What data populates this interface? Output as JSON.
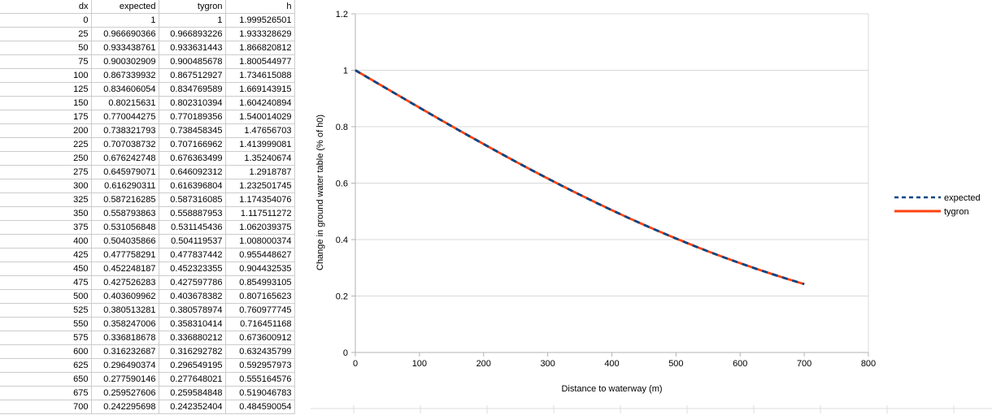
{
  "table": {
    "columns": [
      "dx",
      "expected",
      "tygron",
      "h"
    ],
    "rows": [
      [
        "0",
        "1",
        "1",
        "1.999526501"
      ],
      [
        "25",
        "0.966690366",
        "0.966893226",
        "1.933328629"
      ],
      [
        "50",
        "0.933438761",
        "0.933631443",
        "1.866820812"
      ],
      [
        "75",
        "0.900302909",
        "0.900485678",
        "1.800544977"
      ],
      [
        "100",
        "0.867339932",
        "0.867512927",
        "1.734615088"
      ],
      [
        "125",
        "0.834606054",
        "0.834769589",
        "1.669143915"
      ],
      [
        "150",
        "0.80215631",
        "0.802310394",
        "1.604240894"
      ],
      [
        "175",
        "0.770044275",
        "0.770189356",
        "1.540014029"
      ],
      [
        "200",
        "0.738321793",
        "0.738458345",
        "1.47656703"
      ],
      [
        "225",
        "0.707038732",
        "0.707166962",
        "1.413999081"
      ],
      [
        "250",
        "0.676242748",
        "0.676363499",
        "1.35240674"
      ],
      [
        "275",
        "0.645979071",
        "0.646092312",
        "1.2918787"
      ],
      [
        "300",
        "0.616290311",
        "0.616396804",
        "1.232501745"
      ],
      [
        "325",
        "0.587216285",
        "0.587316085",
        "1.174354076"
      ],
      [
        "350",
        "0.558793863",
        "0.558887953",
        "1.117511272"
      ],
      [
        "375",
        "0.531056848",
        "0.531145436",
        "1.062039375"
      ],
      [
        "400",
        "0.504035866",
        "0.504119537",
        "1.008000374"
      ],
      [
        "425",
        "0.477758291",
        "0.477837442",
        "0.955448627"
      ],
      [
        "450",
        "0.452248187",
        "0.452323355",
        "0.904432535"
      ],
      [
        "475",
        "0.427526283",
        "0.427597786",
        "0.854993105"
      ],
      [
        "500",
        "0.403609962",
        "0.403678382",
        "0.807165623"
      ],
      [
        "525",
        "0.380513281",
        "0.380578974",
        "0.760977745"
      ],
      [
        "550",
        "0.358247006",
        "0.358310414",
        "0.716451168"
      ],
      [
        "575",
        "0.336818678",
        "0.336880212",
        "0.673600912"
      ],
      [
        "600",
        "0.316232687",
        "0.316292782",
        "0.632435799"
      ],
      [
        "625",
        "0.296490374",
        "0.296549195",
        "0.592957973"
      ],
      [
        "650",
        "0.277590146",
        "0.277648021",
        "0.555164576"
      ],
      [
        "675",
        "0.259527606",
        "0.259584848",
        "0.519046783"
      ],
      [
        "700",
        "0.242295698",
        "0.242352404",
        "0.484590054"
      ]
    ]
  },
  "chart_data": {
    "type": "line",
    "x": [
      0,
      25,
      50,
      75,
      100,
      125,
      150,
      175,
      200,
      225,
      250,
      275,
      300,
      325,
      350,
      375,
      400,
      425,
      450,
      475,
      500,
      525,
      550,
      575,
      600,
      625,
      650,
      675,
      700
    ],
    "series": [
      {
        "name": "expected",
        "color": "#004586",
        "line_style": "dashed",
        "values": [
          1,
          0.966690366,
          0.933438761,
          0.900302909,
          0.867339932,
          0.834606054,
          0.80215631,
          0.770044275,
          0.738321793,
          0.707038732,
          0.676242748,
          0.645979071,
          0.616290311,
          0.587216285,
          0.558793863,
          0.531056848,
          0.504035866,
          0.477758291,
          0.452248187,
          0.427526283,
          0.403609962,
          0.380513281,
          0.358247006,
          0.336818678,
          0.316232687,
          0.296490374,
          0.277590146,
          0.259527606,
          0.242295698
        ]
      },
      {
        "name": "tygron",
        "color": "#ff420e",
        "line_style": "solid",
        "values": [
          1,
          0.966893226,
          0.933631443,
          0.900485678,
          0.867512927,
          0.834769589,
          0.802310394,
          0.770189356,
          0.738458345,
          0.707166962,
          0.676363499,
          0.646092312,
          0.616396804,
          0.587316085,
          0.558887953,
          0.531145436,
          0.504119537,
          0.477837442,
          0.452323355,
          0.427597786,
          0.403678382,
          0.380578974,
          0.358310414,
          0.336880212,
          0.316292782,
          0.296549195,
          0.277648021,
          0.259584848,
          0.242352404
        ]
      }
    ],
    "title": "",
    "xlabel": "Distance to waterway (m)",
    "ylabel": "Change in ground water table (% of h0)",
    "xlim": [
      0,
      800
    ],
    "ylim": [
      0,
      1.2
    ],
    "xticks": [
      0,
      100,
      200,
      300,
      400,
      500,
      600,
      700,
      800
    ],
    "yticks": [
      0,
      0.2,
      0.4,
      0.6,
      0.8,
      1,
      1.2
    ],
    "ytick_labels": [
      "0",
      "0.2",
      "0.4",
      "0.6",
      "0.8",
      "1",
      "1.2"
    ],
    "grid": "horizontal",
    "legend_position": "right",
    "legend": [
      "expected",
      "tygron"
    ]
  },
  "colors": {
    "expected_series": "#004586",
    "tygron_series": "#ff420e",
    "chart_grid": "#d9d9d9",
    "chart_axis": "#b3b3b3",
    "table_grid": "#cccccc",
    "background_grid": "#dedede",
    "text": "#000000",
    "background": "#ffffff"
  }
}
